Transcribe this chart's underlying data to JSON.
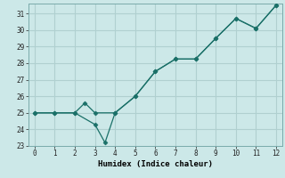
{
  "xlabel": "Humidex (Indice chaleur)",
  "ylabel": "",
  "background_color": "#cce8e8",
  "grid_color": "#b0d0d0",
  "line_color": "#1a7068",
  "xlim": [
    -0.3,
    12.3
  ],
  "ylim": [
    23,
    31.6
  ],
  "xticks": [
    0,
    1,
    2,
    3,
    4,
    5,
    6,
    7,
    8,
    9,
    10,
    11,
    12
  ],
  "yticks": [
    23,
    24,
    25,
    26,
    27,
    28,
    29,
    30,
    31
  ],
  "line1_x": [
    0,
    1,
    2,
    3,
    3.5,
    4,
    5,
    6,
    7,
    8,
    9,
    10,
    11,
    12
  ],
  "line1_y": [
    25,
    25,
    25,
    24.3,
    23.2,
    25.0,
    26.0,
    27.5,
    28.25,
    28.25,
    29.5,
    30.7,
    30.1,
    31.5
  ],
  "line2_x": [
    0,
    1,
    2,
    2.5,
    3,
    4,
    5,
    6,
    7,
    8,
    9,
    10,
    11,
    12
  ],
  "line2_y": [
    25,
    25,
    25,
    25.6,
    25.0,
    25.0,
    26.0,
    27.5,
    28.25,
    28.25,
    29.5,
    30.7,
    30.1,
    31.5
  ],
  "marker": "D",
  "marker_size": 2.5
}
